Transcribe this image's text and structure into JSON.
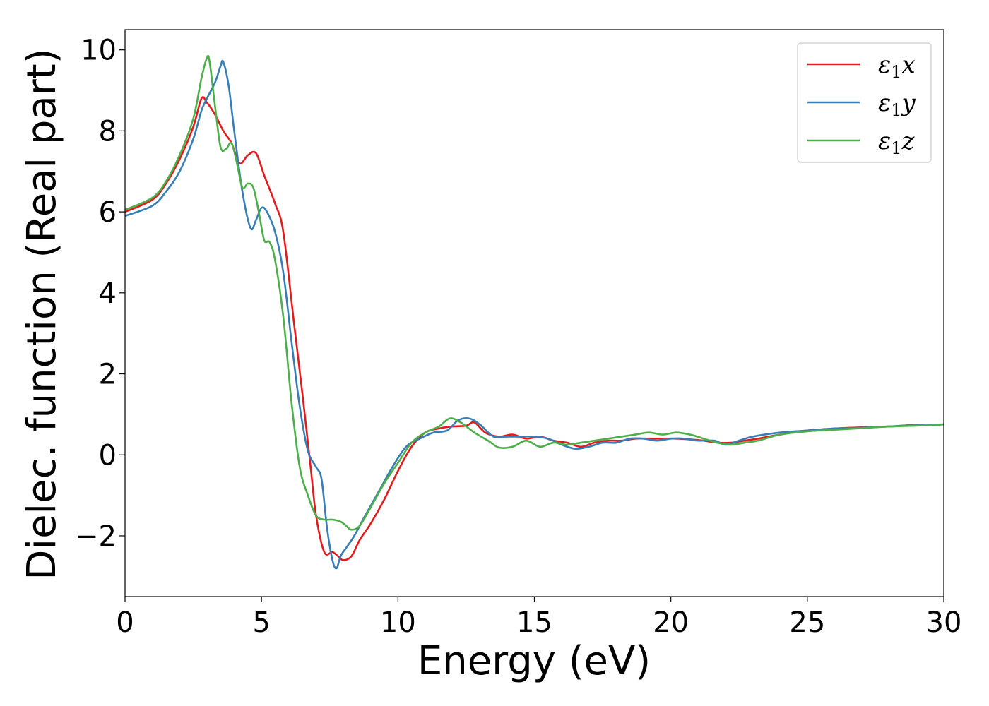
{
  "chart_data": {
    "type": "line",
    "title": "",
    "xlabel": "Energy (eV)",
    "ylabel": "Dielec. function (Real part)",
    "xlim": [
      0,
      30
    ],
    "ylim": [
      -3.5,
      10.5
    ],
    "xticks": [
      0,
      5,
      10,
      15,
      20,
      25,
      30
    ],
    "xtick_labels": [
      "0",
      "5",
      "10",
      "15",
      "20",
      "25",
      "30"
    ],
    "yticks": [
      -2,
      0,
      2,
      4,
      6,
      8,
      10
    ],
    "ytick_labels": [
      "−2",
      "0",
      "2",
      "4",
      "6",
      "8",
      "10"
    ],
    "grid": false,
    "legend_position": "top-right",
    "series": [
      {
        "name": "ε₁x",
        "legend_base": "ε",
        "legend_sub": "1",
        "legend_suffix": "x",
        "color": "#e41a1c",
        "x": [
          0,
          1,
          1.5,
          2,
          2.5,
          2.8,
          3,
          3.3,
          3.6,
          3.9,
          4.2,
          4.5,
          4.8,
          5.1,
          5.5,
          5.8,
          6.2,
          6.5,
          6.8,
          7.0,
          7.3,
          7.6,
          7.8,
          8.0,
          8.3,
          8.6,
          9.0,
          9.5,
          10,
          10.5,
          11,
          11.5,
          12,
          12.5,
          12.8,
          13.2,
          13.7,
          14.2,
          14.7,
          15.2,
          15.7,
          16.2,
          16.7,
          17.2,
          17.7,
          18.2,
          18.7,
          19.2,
          19.7,
          20.2,
          20.7,
          21.2,
          21.7,
          22.2,
          22.7,
          23.2,
          24,
          25,
          26,
          27,
          28,
          29,
          30
        ],
        "y": [
          6.0,
          6.3,
          6.7,
          7.3,
          8.1,
          8.8,
          8.7,
          8.4,
          8.0,
          7.7,
          7.2,
          7.4,
          7.45,
          6.9,
          6.2,
          5.5,
          3.2,
          1.5,
          -0.3,
          -1.5,
          -2.4,
          -2.4,
          -2.5,
          -2.6,
          -2.5,
          -2.1,
          -1.7,
          -1.1,
          -0.4,
          0.2,
          0.55,
          0.65,
          0.7,
          0.72,
          0.8,
          0.55,
          0.45,
          0.5,
          0.4,
          0.45,
          0.35,
          0.3,
          0.2,
          0.3,
          0.35,
          0.35,
          0.4,
          0.4,
          0.4,
          0.4,
          0.38,
          0.35,
          0.3,
          0.3,
          0.35,
          0.4,
          0.5,
          0.6,
          0.65,
          0.68,
          0.7,
          0.74,
          0.75
        ]
      },
      {
        "name": "ε₁y",
        "legend_base": "ε",
        "legend_sub": "1",
        "legend_suffix": "y",
        "color": "#377eb8",
        "x": [
          0,
          1,
          1.5,
          2,
          2.5,
          2.8,
          3.0,
          3.3,
          3.5,
          3.6,
          3.8,
          4.0,
          4.3,
          4.6,
          4.8,
          5.0,
          5.2,
          5.5,
          5.8,
          6.1,
          6.4,
          6.7,
          7.0,
          7.2,
          7.4,
          7.6,
          7.75,
          7.9,
          8.1,
          8.4,
          8.8,
          9.3,
          9.8,
          10.3,
          10.8,
          11.3,
          11.8,
          12.2,
          12.6,
          13.0,
          13.5,
          14.0,
          14.5,
          15.0,
          15.5,
          16.0,
          16.5,
          17.0,
          17.5,
          18.0,
          18.5,
          19.0,
          19.5,
          20.0,
          20.5,
          21.0,
          21.6,
          22.0,
          22.5,
          23,
          24,
          25,
          26,
          27,
          28,
          29,
          30
        ],
        "y": [
          5.9,
          6.15,
          6.5,
          7.0,
          7.8,
          8.5,
          8.8,
          9.2,
          9.6,
          9.7,
          9.1,
          8.0,
          6.5,
          5.6,
          5.8,
          6.1,
          6.0,
          5.5,
          4.5,
          2.8,
          1.2,
          0.1,
          -0.3,
          -0.6,
          -1.8,
          -2.6,
          -2.8,
          -2.5,
          -2.3,
          -2.0,
          -1.5,
          -0.9,
          -0.3,
          0.2,
          0.4,
          0.55,
          0.6,
          0.85,
          0.9,
          0.75,
          0.45,
          0.45,
          0.45,
          0.45,
          0.4,
          0.25,
          0.15,
          0.2,
          0.3,
          0.3,
          0.4,
          0.4,
          0.35,
          0.4,
          0.4,
          0.35,
          0.35,
          0.25,
          0.35,
          0.45,
          0.55,
          0.6,
          0.65,
          0.67,
          0.7,
          0.74,
          0.75
        ]
      },
      {
        "name": "ε₁z",
        "legend_base": "ε",
        "legend_sub": "1",
        "legend_suffix": "z",
        "color": "#4daf4a",
        "x": [
          0,
          1,
          1.5,
          2,
          2.5,
          2.8,
          3.0,
          3.1,
          3.3,
          3.5,
          3.7,
          3.9,
          4.1,
          4.3,
          4.5,
          4.7,
          4.9,
          5.1,
          5.3,
          5.5,
          5.8,
          6.1,
          6.4,
          6.7,
          7.0,
          7.3,
          7.6,
          7.9,
          8.1,
          8.3,
          8.6,
          9.0,
          9.5,
          10,
          10.5,
          11,
          11.5,
          11.9,
          12.3,
          12.8,
          13.3,
          13.7,
          14.2,
          14.7,
          15.2,
          15.7,
          16.2,
          16.7,
          17.2,
          17.7,
          18.2,
          18.7,
          19.2,
          19.7,
          20.2,
          20.7,
          21.2,
          21.7,
          22.2,
          22.7,
          23.2,
          24,
          25,
          26,
          27,
          28,
          29,
          30
        ],
        "y": [
          6.05,
          6.35,
          6.75,
          7.4,
          8.3,
          9.3,
          9.8,
          9.7,
          8.6,
          7.6,
          7.55,
          7.7,
          7.2,
          6.6,
          6.7,
          6.6,
          6.0,
          5.3,
          5.25,
          4.8,
          3.4,
          1.3,
          -0.3,
          -1.0,
          -1.5,
          -1.6,
          -1.6,
          -1.65,
          -1.75,
          -1.85,
          -1.75,
          -1.3,
          -0.7,
          -0.2,
          0.3,
          0.55,
          0.7,
          0.9,
          0.8,
          0.55,
          0.35,
          0.18,
          0.2,
          0.35,
          0.2,
          0.3,
          0.25,
          0.3,
          0.35,
          0.4,
          0.45,
          0.5,
          0.55,
          0.5,
          0.55,
          0.5,
          0.4,
          0.3,
          0.25,
          0.3,
          0.35,
          0.5,
          0.58,
          0.62,
          0.66,
          0.7,
          0.72,
          0.75
        ]
      }
    ]
  }
}
